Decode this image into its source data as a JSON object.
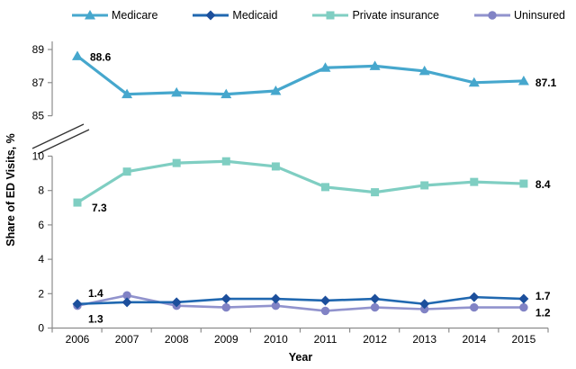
{
  "chart_data": {
    "type": "line",
    "title": "",
    "xlabel": "Year",
    "ylabel": "Share of ED Visits, %",
    "categories": [
      "2006",
      "2007",
      "2008",
      "2009",
      "2010",
      "2011",
      "2012",
      "2013",
      "2014",
      "2015"
    ],
    "axis_break": true,
    "grid": false,
    "legend_position": "top",
    "upper_axis": {
      "ticks": [
        89,
        87,
        85
      ],
      "range": [
        85,
        89.5
      ]
    },
    "lower_axis": {
      "ticks": [
        10,
        8,
        6,
        4,
        2,
        0
      ],
      "range": [
        0,
        10
      ]
    },
    "series": [
      {
        "name": "Medicare",
        "axis": "upper",
        "marker": "triangle",
        "line_color": "#46A7CD",
        "marker_color": "#46A7CD",
        "values": [
          88.6,
          86.3,
          86.4,
          86.3,
          86.5,
          87.9,
          88.0,
          87.7,
          87.0,
          87.1
        ],
        "label_first": "88.6",
        "label_last": "87.1"
      },
      {
        "name": "Medicaid",
        "axis": "lower",
        "marker": "diamond",
        "line_color": "#2068B0",
        "marker_color": "#1C4F9C",
        "values": [
          1.4,
          1.5,
          1.5,
          1.7,
          1.7,
          1.6,
          1.7,
          1.4,
          1.8,
          1.7
        ],
        "label_first": "1.4",
        "label_last": "1.7"
      },
      {
        "name": "Private insurance",
        "axis": "lower",
        "marker": "square",
        "line_color": "#7FCEC2",
        "marker_color": "#7FCEC2",
        "values": [
          7.3,
          9.1,
          9.6,
          9.7,
          9.4,
          8.2,
          7.9,
          8.3,
          8.5,
          8.4
        ],
        "label_first": "7.3",
        "label_last": "8.4"
      },
      {
        "name": "Uninsured",
        "axis": "lower",
        "marker": "circle",
        "line_color": "#9193CD",
        "marker_color": "#8183C5",
        "values": [
          1.3,
          1.9,
          1.3,
          1.2,
          1.3,
          1.0,
          1.2,
          1.1,
          1.2,
          1.2
        ],
        "label_first": "1.3",
        "label_last": "1.2"
      }
    ]
  }
}
